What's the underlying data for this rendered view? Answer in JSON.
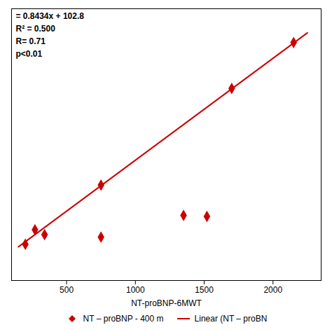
{
  "chart_data": {
    "type": "scatter",
    "xlabel": "NT-proBNP-6MWT",
    "annotations": [
      "= 0.8434x + 102.8",
      "R² = 0.500",
      "R= 0.71",
      "p<0.01"
    ],
    "series": [
      {
        "name": "NT – proBNP - 400 m",
        "type": "scatter",
        "color": "#cc0000",
        "marker": "diamond",
        "x": [
          200,
          270,
          340,
          750,
          750,
          1350,
          1520,
          1700,
          2150
        ],
        "values": [
          250,
          370,
          330,
          740,
          310,
          490,
          480,
          1540,
          1920
        ]
      },
      {
        "name": "Linear (NT – proBN",
        "type": "line",
        "color": "#cc0000",
        "x": [
          150,
          2250
        ],
        "values": [
          229.31,
          2000.45
        ]
      }
    ],
    "xlim": [
      100,
      2350
    ],
    "ylim": [
      -50,
      2200
    ],
    "xticks": [
      500,
      1000,
      1500,
      2000
    ],
    "yticks": [],
    "tick_labels": "x",
    "grid": false,
    "legend": "bottom"
  }
}
